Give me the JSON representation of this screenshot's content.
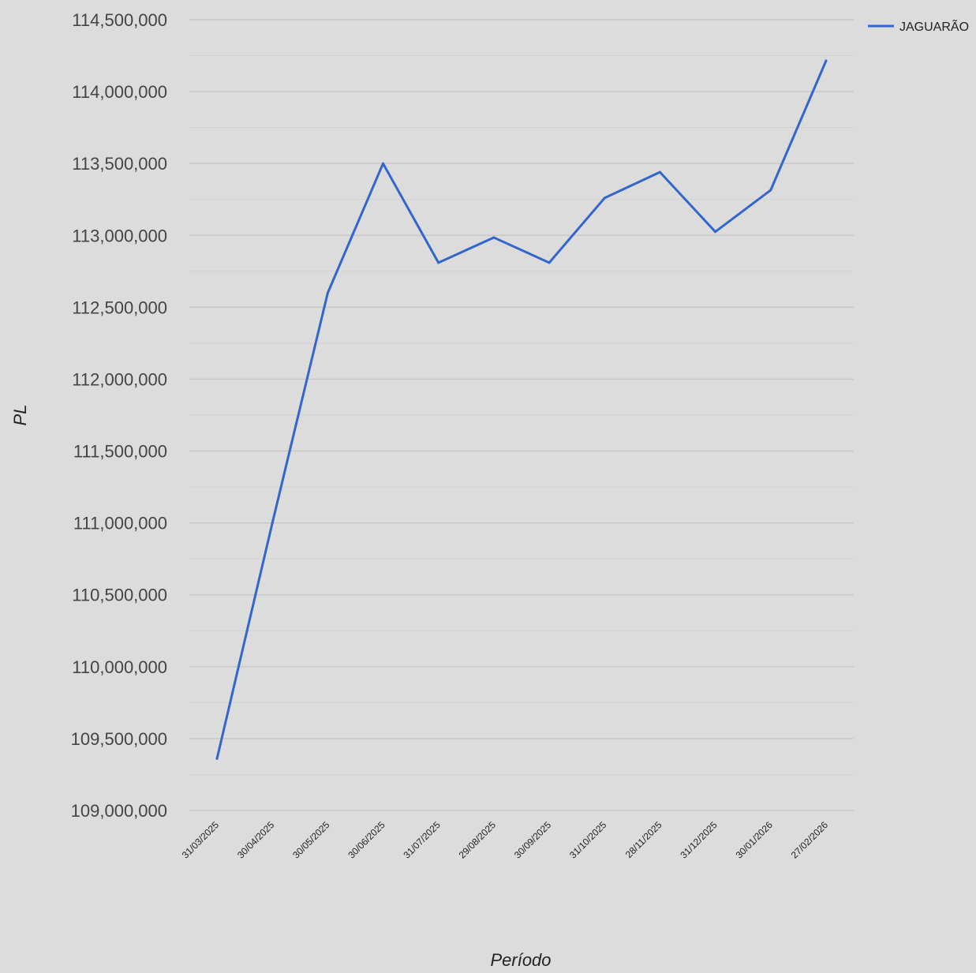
{
  "chart_data": {
    "type": "line",
    "xlabel": "Período",
    "ylabel": "PL",
    "categories": [
      "31/03/2025",
      "30/04/2025",
      "30/05/2025",
      "30/06/2025",
      "31/07/2025",
      "29/08/2025",
      "30/09/2025",
      "31/10/2025",
      "28/11/2025",
      "31/12/2025",
      "30/01/2026",
      "27/02/2026"
    ],
    "series": [
      {
        "name": "JAGUARÃO",
        "color": "#3366cc",
        "values": [
          109360000,
          111000000,
          112600000,
          113500000,
          112810000,
          112985000,
          112810000,
          113260000,
          113440000,
          113025000,
          113315000,
          114215000
        ]
      }
    ],
    "ylim": [
      109000000,
      114500000
    ],
    "y_ticks": [
      109000000,
      109500000,
      110000000,
      110500000,
      111000000,
      111500000,
      112000000,
      112500000,
      113000000,
      113500000,
      114000000,
      114500000
    ],
    "y_tick_labels": [
      "109,000,000",
      "109,500,000",
      "110,000,000",
      "110,500,000",
      "111,000,000",
      "111,500,000",
      "112,000,000",
      "112,500,000",
      "113,000,000",
      "113,500,000",
      "114,000,000",
      "114,500,000"
    ],
    "grid": true,
    "minor_grid": true,
    "legend_position": "top-right",
    "colors": {
      "background": "#dcdcdc",
      "grid": "#c8c8c8",
      "minor_grid": "#d2d2d2",
      "axis_text": "#444444"
    }
  }
}
